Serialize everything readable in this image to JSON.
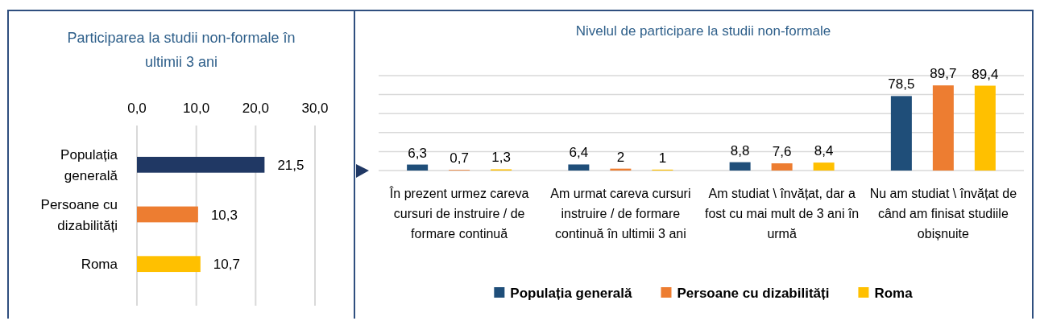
{
  "chart_data": [
    {
      "type": "bar",
      "orientation": "horizontal",
      "title": "Participarea la studii non-formale în ultimii 3 ani",
      "categories": [
        "Populația generală",
        "Persoane cu dizabilități",
        "Roma"
      ],
      "values": [
        21.5,
        10.3,
        10.7
      ],
      "colors": [
        "#203864",
        "#ed7d31",
        "#ffc000"
      ],
      "value_labels": [
        "21,5",
        "10,3",
        "10,7"
      ],
      "xlim": [
        0,
        30
      ],
      "xticks": [
        {
          "value": 0,
          "label": "0,0"
        },
        {
          "value": 10,
          "label": "10,0"
        },
        {
          "value": 20,
          "label": "20,0"
        },
        {
          "value": 30,
          "label": "30,0"
        }
      ],
      "grid": "x"
    },
    {
      "type": "bar",
      "title": "Nivelul de participare la studii non-formale",
      "categories": [
        "În prezent urmez careva cursuri de instruire / de formare continuă",
        "Am urmat careva cursuri instruire / de formare continuă în ultimii 3 ani",
        "Am studiat \\ învățat, dar a fost cu mai mult de 3 ani în urmă",
        "Nu am studiat \\ învățat de când am finisat studiile obișnuite"
      ],
      "series": [
        {
          "name": "Populația generală",
          "color": "#1f4e79",
          "values": [
            6.3,
            6.4,
            8.8,
            78.5
          ],
          "value_labels": [
            "6,3",
            "6,4",
            "8,8",
            "78,5"
          ]
        },
        {
          "name": "Persoane cu dizabilități",
          "color": "#ed7d31",
          "values": [
            0.7,
            2,
            7.6,
            89.7
          ],
          "value_labels": [
            "0,7",
            "2",
            "7,6",
            "89,7"
          ]
        },
        {
          "name": "Roma",
          "color": "#ffc000",
          "values": [
            1.3,
            1,
            8.4,
            89.4
          ],
          "value_labels": [
            "1,3",
            "1",
            "8,4",
            "89,4"
          ]
        }
      ],
      "ylim": [
        0,
        100
      ],
      "yticks": [
        {
          "value": 0,
          "label": null
        },
        {
          "value": 20,
          "label": null
        },
        {
          "value": 40,
          "label": null
        },
        {
          "value": 60,
          "label": null
        },
        {
          "value": 80,
          "label": null
        },
        {
          "value": 100,
          "label": null
        }
      ],
      "grid": "y",
      "legend": "bottom",
      "tick_labels": "x"
    }
  ]
}
